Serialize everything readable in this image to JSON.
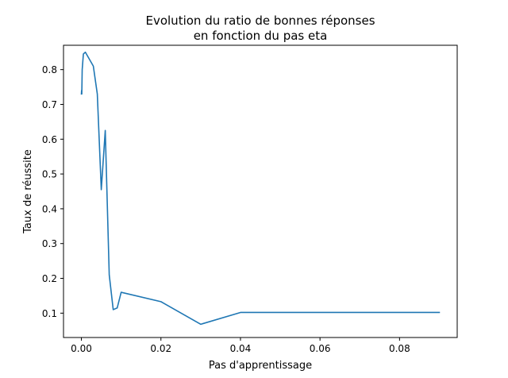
{
  "chart_data": {
    "type": "line",
    "title": "Evolution du ratio de bonnes réponses",
    "subtitle": "en fonction du pas eta",
    "xlabel": "Pas d'apprentissage",
    "ylabel": "Taux de réussite",
    "xlim": [
      -0.0045,
      0.0945
    ],
    "ylim": [
      0.03,
      0.87
    ],
    "x_ticks": [
      0.0,
      0.02,
      0.04,
      0.06,
      0.08
    ],
    "x_tick_labels": [
      "0.00",
      "0.02",
      "0.04",
      "0.06",
      "0.08"
    ],
    "y_ticks": [
      0.1,
      0.2,
      0.3,
      0.4,
      0.5,
      0.6,
      0.7,
      0.8
    ],
    "y_tick_labels": [
      "0.1",
      "0.2",
      "0.3",
      "0.4",
      "0.5",
      "0.6",
      "0.7",
      "0.8"
    ],
    "grid": false,
    "series": [
      {
        "color": "#1f77b4",
        "x": [
          0.0,
          5e-05,
          0.0001,
          0.0002,
          0.0005,
          0.001,
          0.002,
          0.003,
          0.004,
          0.005,
          0.006,
          0.007,
          0.008,
          0.009,
          0.01,
          0.02,
          0.03,
          0.04,
          0.05,
          0.06,
          0.07,
          0.08,
          0.09
        ],
        "y": [
          0.73,
          0.74,
          0.73,
          0.8,
          0.845,
          0.85,
          0.83,
          0.81,
          0.73,
          0.455,
          0.625,
          0.21,
          0.11,
          0.115,
          0.16,
          0.133,
          0.068,
          0.102,
          0.102,
          0.102,
          0.102,
          0.102,
          0.102
        ]
      }
    ]
  }
}
